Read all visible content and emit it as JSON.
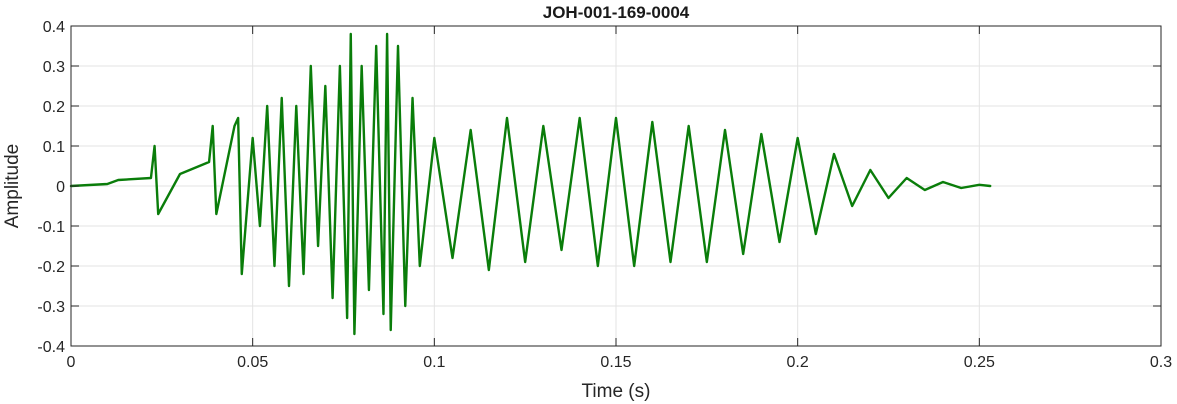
{
  "chart_data": {
    "type": "line",
    "title": "JOH-001-169-0004",
    "xlabel": "Time (s)",
    "ylabel": "Amplitude",
    "xlim": [
      0,
      0.3
    ],
    "ylim": [
      -0.4,
      0.4
    ],
    "x_ticks": [
      "0",
      "0.05",
      "0.1",
      "0.15",
      "0.2",
      "0.25",
      "0.3"
    ],
    "x_tick_values": [
      0,
      0.05,
      0.1,
      0.15,
      0.2,
      0.25,
      0.3
    ],
    "y_ticks": [
      "0.4",
      "0.3",
      "0.2",
      "0.1",
      "0",
      "-0.1",
      "-0.2",
      "-0.3",
      "-0.4"
    ],
    "y_tick_values": [
      0.4,
      0.3,
      0.2,
      0.1,
      0,
      -0.1,
      -0.2,
      -0.3,
      -0.4
    ],
    "grid": true,
    "line_color": "#0a7d0a",
    "grid_color": "#e3e3e3",
    "axis_color": "#262626",
    "series": [
      {
        "x": [
          0,
          0.01,
          0.013,
          0.022,
          0.023,
          0.024,
          0.03,
          0.038,
          0.039,
          0.04,
          0.045,
          0.046,
          0.047,
          0.05,
          0.052,
          0.054,
          0.056,
          0.058,
          0.06,
          0.062,
          0.064,
          0.066,
          0.068,
          0.07,
          0.072,
          0.074,
          0.076,
          0.077,
          0.078,
          0.08,
          0.082,
          0.084,
          0.086,
          0.087,
          0.088,
          0.09,
          0.092,
          0.094,
          0.096,
          0.1,
          0.105,
          0.11,
          0.115,
          0.12,
          0.125,
          0.13,
          0.135,
          0.14,
          0.145,
          0.15,
          0.155,
          0.16,
          0.165,
          0.17,
          0.175,
          0.18,
          0.185,
          0.19,
          0.195,
          0.2,
          0.205,
          0.21,
          0.215,
          0.22,
          0.225,
          0.23,
          0.235,
          0.24,
          0.245,
          0.25,
          0.253
        ],
        "y": [
          0,
          0.005,
          0.015,
          0.02,
          0.1,
          -0.07,
          0.03,
          0.06,
          0.15,
          -0.07,
          0.15,
          0.17,
          -0.22,
          0.12,
          -0.1,
          0.2,
          -0.2,
          0.22,
          -0.25,
          0.2,
          -0.22,
          0.3,
          -0.15,
          0.25,
          -0.28,
          0.3,
          -0.33,
          0.38,
          -0.37,
          0.3,
          -0.26,
          0.35,
          -0.32,
          0.38,
          -0.36,
          0.35,
          -0.3,
          0.22,
          -0.2,
          0.12,
          -0.18,
          0.14,
          -0.21,
          0.17,
          -0.19,
          0.15,
          -0.16,
          0.17,
          -0.2,
          0.17,
          -0.2,
          0.16,
          -0.19,
          0.15,
          -0.19,
          0.14,
          -0.17,
          0.13,
          -0.14,
          0.12,
          -0.12,
          0.08,
          -0.05,
          0.04,
          -0.03,
          0.02,
          -0.01,
          0.01,
          -0.005,
          0.003,
          0
        ]
      }
    ]
  }
}
